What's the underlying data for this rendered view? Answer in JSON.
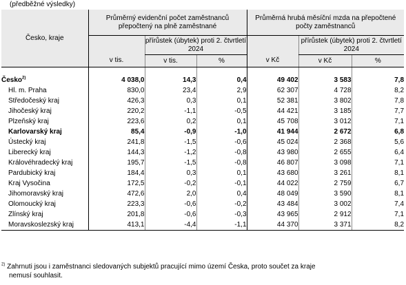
{
  "caption": "(předběžné výsledky)",
  "header": {
    "region_col": "Česko, kraje",
    "group_employees": "Průměrný evidenční počet zaměstnanců přepočtený na plně zaměstnané",
    "group_wage": "Průměrná hrubá měsíční mzda na přepočtené počty zaměstnanců",
    "employees_unit": "v tis.",
    "wage_unit": "v Kč",
    "change_label": "přírůstek (úbytek) proti 2. čtvrtletí 2024",
    "change_abs_employees": "v tis.",
    "change_abs_wage": "v Kč",
    "change_pct": "%"
  },
  "rows": [
    {
      "region": "Česko",
      "sup": "2)",
      "emp": "4 038,0",
      "emp_abs": "14,3",
      "emp_pct": "0,4",
      "wage": "49 402",
      "wage_abs": "3 583",
      "wage_pct": "7,8"
    },
    {
      "region": "Hl. m. Praha",
      "emp": "830,0",
      "emp_abs": "23,4",
      "emp_pct": "2,9",
      "wage": "62 307",
      "wage_abs": "4 728",
      "wage_pct": "8,2"
    },
    {
      "region": "Středočeský kraj",
      "emp": "426,3",
      "emp_abs": "0,3",
      "emp_pct": "0,1",
      "wage": "52 381",
      "wage_abs": "3 802",
      "wage_pct": "7,8"
    },
    {
      "region": "Jihočeský kraj",
      "emp": "220,2",
      "emp_abs": "-1,1",
      "emp_pct": "-0,5",
      "wage": "44 421",
      "wage_abs": "3 185",
      "wage_pct": "7,7"
    },
    {
      "region": "Plzeňský kraj",
      "emp": "223,6",
      "emp_abs": "0,2",
      "emp_pct": "0,1",
      "wage": "45 708",
      "wage_abs": "3 012",
      "wage_pct": "7,1"
    },
    {
      "region": "Karlovarský kraj",
      "emp": "85,4",
      "emp_abs": "-0,9",
      "emp_pct": "-1,0",
      "wage": "41 944",
      "wage_abs": "2 672",
      "wage_pct": "6,8"
    },
    {
      "region": "Ústecký kraj",
      "emp": "241,8",
      "emp_abs": "-1,5",
      "emp_pct": "-0,6",
      "wage": "45 024",
      "wage_abs": "2 368",
      "wage_pct": "5,6"
    },
    {
      "region": "Liberecký kraj",
      "emp": "144,3",
      "emp_abs": "-1,2",
      "emp_pct": "-0,8",
      "wage": "43 980",
      "wage_abs": "2 655",
      "wage_pct": "6,4"
    },
    {
      "region": "Královéhradecký kraj",
      "emp": "195,7",
      "emp_abs": "-1,5",
      "emp_pct": "-0,8",
      "wage": "46 807",
      "wage_abs": "3 098",
      "wage_pct": "7,1"
    },
    {
      "region": "Pardubický kraj",
      "emp": "184,4",
      "emp_abs": "0,3",
      "emp_pct": "0,1",
      "wage": "43 680",
      "wage_abs": "3 261",
      "wage_pct": "8,1"
    },
    {
      "region": "Kraj Vysočina",
      "emp": "172,5",
      "emp_abs": "-0,2",
      "emp_pct": "-0,1",
      "wage": "44 022",
      "wage_abs": "2 759",
      "wage_pct": "6,7"
    },
    {
      "region": "Jihomoravský kraj",
      "emp": "472,6",
      "emp_abs": "2,0",
      "emp_pct": "0,4",
      "wage": "48 049",
      "wage_abs": "3 590",
      "wage_pct": "8,1"
    },
    {
      "region": "Olomoucký kraj",
      "emp": "223,3",
      "emp_abs": "-0,6",
      "emp_pct": "-0,2",
      "wage": "43 484",
      "wage_abs": "3 002",
      "wage_pct": "7,4"
    },
    {
      "region": "Zlínský kraj",
      "emp": "201,8",
      "emp_abs": "-0,6",
      "emp_pct": "-0,3",
      "wage": "43 965",
      "wage_abs": "2 912",
      "wage_pct": "7,1"
    },
    {
      "region": "Moravskoslezský kraj",
      "emp": "413,1",
      "emp_abs": "-4,4",
      "emp_pct": "-1,1",
      "wage": "44 370",
      "wage_abs": "3 371",
      "wage_pct": "8,2"
    }
  ],
  "footnote": {
    "mark": "2)",
    "line1": "Zahrnuti jsou i zaměstnanci sledovaných subjektů pracující mimo území Česka, proto součet za kraje",
    "line2": "nemusí souhlasit."
  }
}
